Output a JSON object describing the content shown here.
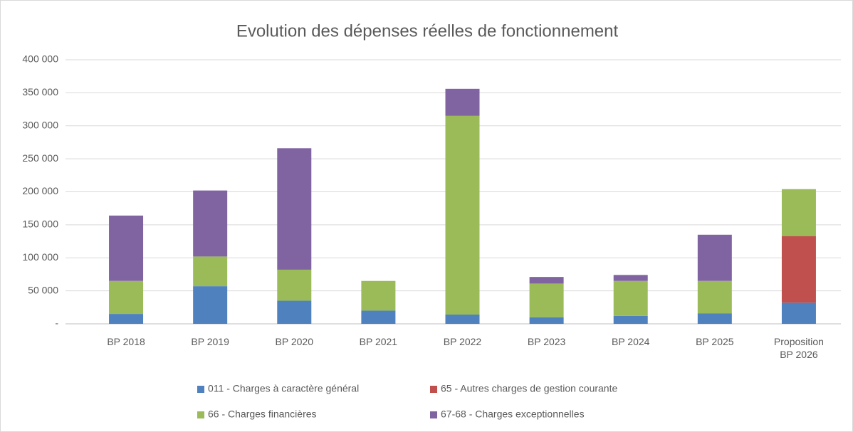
{
  "chart_data": {
    "type": "stacked_bar",
    "title": "Evolution des dépenses réelles de fonctionnement",
    "categories": [
      "BP 2018",
      "BP 2019",
      "BP 2020",
      "BP 2021",
      "BP 2022",
      "BP 2023",
      "BP 2024",
      "BP 2025",
      "Proposition BP 2026"
    ],
    "series": [
      {
        "name": "011 - Charges à caractère général",
        "color": "#4e81bd",
        "values": [
          15000,
          57000,
          35000,
          20000,
          14000,
          10000,
          12000,
          16000,
          32000
        ]
      },
      {
        "name": "65 - Autres charges de gestion courante",
        "color": "#c0504d",
        "values": [
          null,
          null,
          null,
          null,
          null,
          null,
          null,
          null,
          101000
        ]
      },
      {
        "name": "66 - Charges financières",
        "color": "#9bbb59",
        "values": [
          50000,
          45000,
          47000,
          45000,
          301000,
          51000,
          53000,
          49000,
          71000
        ]
      },
      {
        "name": "67-68 -  Charges exceptionnelles",
        "color": "#8064a2",
        "values": [
          99000,
          100000,
          184000,
          null,
          41000,
          10000,
          9000,
          70000,
          null
        ]
      }
    ],
    "ylim": [
      0,
      400000
    ],
    "yticks": [
      {
        "value": 0,
        "label": "-"
      },
      {
        "value": 50000,
        "label": "50 000"
      },
      {
        "value": 100000,
        "label": "100 000"
      },
      {
        "value": 150000,
        "label": "150 000"
      },
      {
        "value": 200000,
        "label": "200 000"
      },
      {
        "value": 250000,
        "label": "250 000"
      },
      {
        "value": 300000,
        "label": "300 000"
      },
      {
        "value": 350000,
        "label": "350 000"
      },
      {
        "value": 400000,
        "label": "400 000"
      }
    ],
    "grid": true
  }
}
